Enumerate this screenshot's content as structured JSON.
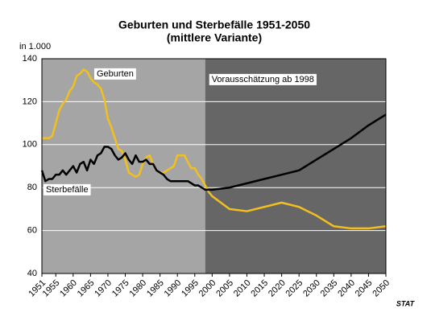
{
  "chart_data": {
    "type": "line",
    "title": "Geburten und Sterbefälle 1951-2050",
    "subtitle": "(mittlere Variante)",
    "y_label": "in 1.000",
    "annotation": "Vorausschätzung ab 1998",
    "forecast_start": 1998,
    "background_colors": [
      "#a5a5a5",
      "#666666"
    ],
    "logo": "STAT",
    "x": [
      1951,
      1952,
      1953,
      1954,
      1955,
      1956,
      1957,
      1958,
      1959,
      1960,
      1961,
      1962,
      1963,
      1964,
      1965,
      1966,
      1967,
      1968,
      1969,
      1970,
      1971,
      1972,
      1973,
      1974,
      1975,
      1976,
      1977,
      1978,
      1979,
      1980,
      1981,
      1982,
      1983,
      1984,
      1985,
      1986,
      1987,
      1988,
      1989,
      1990,
      1991,
      1992,
      1993,
      1994,
      1995,
      1996,
      1997,
      1998,
      1999,
      2000,
      2005,
      2010,
      2015,
      2020,
      2025,
      2030,
      2035,
      2040,
      2045,
      2050
    ],
    "series": [
      {
        "name": "Geburten",
        "color": "#f2c01e",
        "values": [
          103,
          103,
          103,
          104,
          110,
          116,
          119,
          121,
          125,
          127,
          132,
          133,
          135,
          134,
          131,
          129,
          128,
          126,
          121,
          112,
          108,
          103,
          98,
          97,
          93,
          87,
          86,
          85,
          86,
          91,
          94,
          95,
          91,
          88,
          87,
          87,
          88,
          89,
          90,
          95,
          95,
          95,
          92,
          89,
          89,
          86,
          84,
          81,
          78,
          76,
          70,
          69,
          71,
          73,
          71,
          67,
          62,
          61,
          61,
          62
        ]
      },
      {
        "name": "Sterbefälle",
        "color": "#000000",
        "values": [
          88,
          83,
          84,
          84,
          86,
          86,
          88,
          86,
          88,
          90,
          87,
          91,
          92,
          88,
          93,
          91,
          95,
          96,
          99,
          99,
          98,
          95,
          93,
          94,
          96,
          93,
          91,
          95,
          92,
          92,
          93,
          91,
          91,
          88,
          87,
          86,
          84,
          83,
          83,
          83,
          83,
          83,
          83,
          82,
          81,
          81,
          80,
          79,
          79,
          79,
          80,
          82,
          84,
          86,
          88,
          93,
          98,
          103,
          109,
          114
        ]
      }
    ],
    "xlim": [
      1951,
      2050
    ],
    "xticks": [
      1951,
      1955,
      1960,
      1965,
      1970,
      1975,
      1980,
      1985,
      1990,
      1995,
      2000,
      2005,
      2010,
      2015,
      2020,
      2025,
      2030,
      2035,
      2040,
      2045,
      2050
    ],
    "ylim": [
      40,
      140
    ],
    "yticks": [
      40,
      60,
      80,
      100,
      120,
      140
    ],
    "grid": true
  }
}
